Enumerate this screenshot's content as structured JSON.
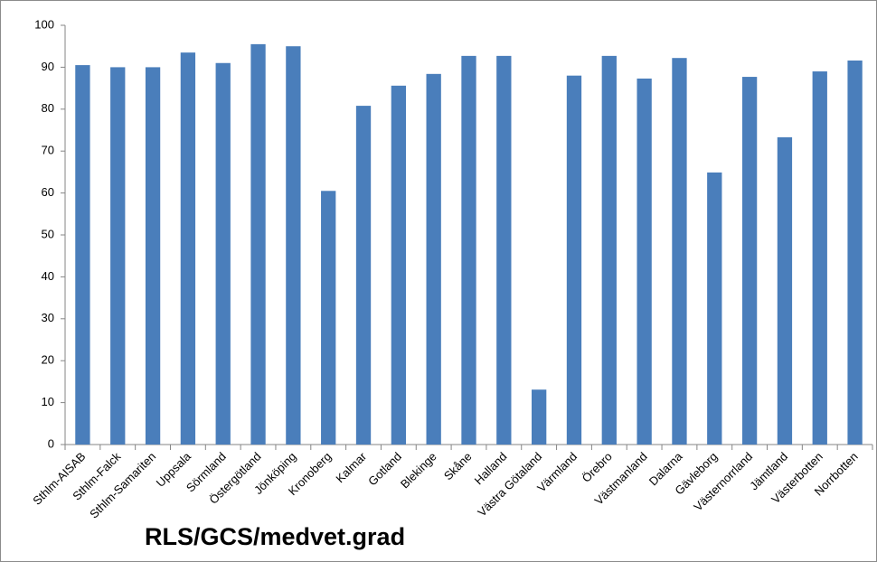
{
  "chart_data": {
    "type": "bar",
    "title": "RLS/GCS/medvet.grad",
    "categories": [
      "Sthlm-AISAB",
      "Sthlm-Falck",
      "Sthlm-Samariten",
      "Uppsala",
      "Sörmland",
      "Östergötland",
      "Jönköping",
      "Kronoberg",
      "Kalmar",
      "Gotland",
      "Blekinge",
      "Skåne",
      "Halland",
      "Västra Götaland",
      "Värmland",
      "Örebro",
      "Västmanland",
      "Dalarna",
      "Gävleborg",
      "Västernorrland",
      "Jämtland",
      "Västerbotten",
      "Norrbotten"
    ],
    "values": [
      90.5,
      90,
      90,
      93.5,
      91,
      95.5,
      95,
      60.5,
      80.8,
      85.6,
      88.4,
      92.7,
      92.7,
      13.1,
      88,
      92.7,
      87.3,
      92.2,
      64.9,
      87.7,
      73.3,
      89,
      91.6
    ],
    "color": "#4a7ebb",
    "ylim": [
      0,
      100
    ],
    "yticks": [
      0,
      10,
      20,
      30,
      40,
      50,
      60,
      70,
      80,
      90,
      100
    ],
    "grid": false
  }
}
